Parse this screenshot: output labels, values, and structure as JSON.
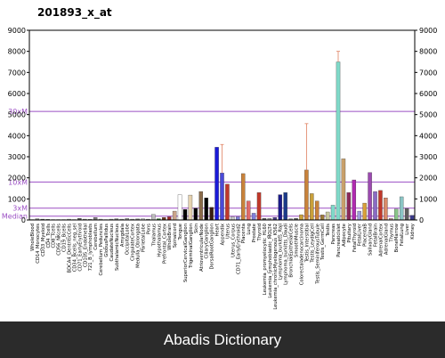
{
  "footer": {
    "text": "Abadis Dictionary"
  },
  "chart_data": {
    "type": "bar",
    "title": "201893_x_at",
    "ylim": [
      0,
      9000
    ],
    "yticks_left": [
      "0",
      "1000",
      "2000",
      "3000",
      "4000",
      "5000",
      "6000",
      "7000",
      "8000",
      "9000"
    ],
    "yticks_right": [
      "0",
      "1000",
      "2000",
      "3000",
      "4000",
      "5000",
      "6000",
      "7000",
      "8000",
      "9000"
    ],
    "reference_lines": [
      {
        "label": "30xM",
        "value": 5150,
        "color": "#9b4fc4"
      },
      {
        "label": "10xM",
        "value": 1800,
        "color": "#9b4fc4"
      },
      {
        "label": "3xM",
        "value": 560,
        "color": "#9b4fc4"
      },
      {
        "label": "Median",
        "value": 180,
        "color": "#9b4fc4"
      }
    ],
    "categories": [
      "WholeBlood",
      "CD14_Monocytes",
      "CD33_Myeloid",
      "CD4_Tcells",
      "CD8_Tcells",
      "CD56_NKcells",
      "CD19_Bcells",
      "BDCA4_DentriticCells",
      "CD34_Bcells_neg_sel",
      "CD71_EarlyErythroid",
      "CD105_Endothelial",
      "721_B_lymphoblasts",
      "Cerebellum",
      "Cerebellum_Peduncles",
      "GlobusPallidus",
      "CaudateNucleus",
      "SubthalamicNucleus",
      "Amygdala",
      "OccipitalLobe",
      "CingulateCortex",
      "Medulla_Oblongata",
      "ParietalLobe",
      "Pons",
      "Thalamus",
      "Hypothalamus",
      "Prefrontal_Cortex",
      "WholeBrain",
      "Spinalcord",
      "Tongue",
      "SuperiorCervicalGanglion",
      "TrigeminalGanglion",
      "Skin",
      "AtrioventricularNode",
      "CiliaryGanglion",
      "DorsalRootGanglion",
      "Heart",
      "Appendix",
      "Uterus",
      "Uterus_Corpus",
      "CD71_EarlyErythroid2",
      "Placenta",
      "Lung",
      "Prostate",
      "Thyroid",
      "Leukemia_promyelocytic_HL60",
      "Leukemia_lymphoblastic_MOLT4",
      "Leukemia_chronicMyelogenous_K562",
      "Lymphoma_burkitts_Raji",
      "Lymphoma_burkitts_Daudi",
      "BronchialEpithelialCells",
      "SmoothMuscle",
      "Colorectaladenocarcinoma",
      "Testis_Interstitial",
      "Testis_LeydigCell",
      "Testis_SeminiferousTubule",
      "Testis_GermCell",
      "Testis",
      "Pancreas",
      "Pancreaticlslet",
      "Adipocyte",
      "Pituitary",
      "FetalThyroid",
      "FetalLiver",
      "PlacentaB",
      "SalivaryGland",
      "FetalBrain",
      "AdrenalCortex",
      "AdrenalGland",
      "Thymus",
      "BoneMarrow",
      "FetalLung",
      "Liver",
      "Kidney"
    ],
    "values": [
      20,
      60,
      40,
      30,
      20,
      20,
      20,
      40,
      20,
      80,
      40,
      30,
      120,
      40,
      20,
      40,
      60,
      40,
      80,
      40,
      50,
      60,
      40,
      260,
      60,
      120,
      150,
      420,
      1200,
      500,
      1180,
      560,
      1350,
      1050,
      600,
      3450,
      2230,
      1700,
      150,
      150,
      2200,
      900,
      320,
      1300,
      80,
      80,
      120,
      1200,
      1300,
      60,
      80,
      250,
      2370,
      1250,
      900,
      240,
      380,
      700,
      7500,
      2900,
      1300,
      1900,
      420,
      800,
      2250,
      1350,
      1400,
      1050,
      80,
      520,
      1100,
      550,
      220
    ],
    "errors": [
      0,
      0,
      0,
      0,
      0,
      0,
      0,
      0,
      0,
      0,
      0,
      0,
      0,
      0,
      0,
      0,
      0,
      0,
      0,
      0,
      0,
      0,
      0,
      0,
      0,
      0,
      0,
      0,
      0,
      0,
      0,
      0,
      0,
      0,
      0,
      0,
      1350,
      0,
      0,
      0,
      0,
      0,
      0,
      0,
      0,
      0,
      0,
      0,
      0,
      0,
      0,
      0,
      2200,
      0,
      0,
      0,
      0,
      0,
      500,
      0,
      0,
      0,
      0,
      0,
      0,
      0,
      0,
      0,
      0,
      0,
      0,
      0,
      0
    ],
    "colors": [
      "#c7c7c7",
      "#8a8a8a",
      "#5e5e5e",
      "#8a8a8a",
      "#c7c7c7",
      "#8a8a8a",
      "#5e5e5e",
      "#c7c7c7",
      "#8a8a8a",
      "#5e5e5e",
      "#9c9c9c",
      "#bcbcbc",
      "#7a7a7a",
      "#c7c7c7",
      "#9c9c9c",
      "#bcbcbc",
      "#7a7a7a",
      "#c7c7c7",
      "#9c9c9c",
      "#bcbcbc",
      "#7a7a7a",
      "#c7c7c7",
      "#9c9c9c",
      "#bcbcbc",
      "#1d7a1d",
      "#6b3a1d",
      "#9c2a2a",
      "#c9a48a",
      "#ffffff",
      "#000000",
      "#e6d2b0",
      "#000000",
      "#8a6b4a",
      "#000000",
      "#3a1e12",
      "#1a1ad9",
      "#4a4ad9",
      "#c0392b",
      "#c7c7c7",
      "#7f7fd9",
      "#c9823a",
      "#e06a6a",
      "#7f7fd9",
      "#c0392b",
      "#5e5e5e",
      "#9c9c9c",
      "#4a3a8a",
      "#1a1a8a",
      "#1a3a8a",
      "#8a8a8a",
      "#5e5e5e",
      "#c9a03a",
      "#c9823a",
      "#c9a03a",
      "#c9823a",
      "#9c7a3a",
      "#c9c9a0",
      "#7fd9c9",
      "#7fd9c9",
      "#c9a06a",
      "#8a2a5a",
      "#b02ab0",
      "#9c9cd9",
      "#d9a03a",
      "#9c4ab0",
      "#8a6bc4",
      "#c0392b",
      "#d98a6a",
      "#c9a0a0",
      "#8ac48a",
      "#8ac4c4",
      "#5e5e5e",
      "#3a3a8a"
    ]
  }
}
